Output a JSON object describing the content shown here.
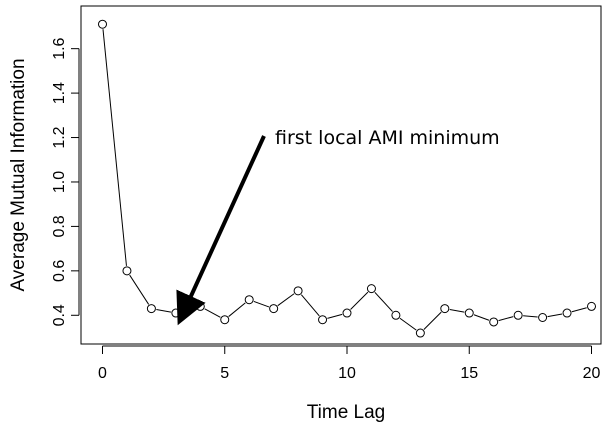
{
  "chart_data": {
    "type": "line",
    "xlabel": "Time Lag",
    "ylabel": "Average Mutual Information",
    "xlim": [
      0,
      20
    ],
    "ylim": [
      0.3,
      1.72
    ],
    "xticks": [
      "0",
      "5",
      "10",
      "15",
      "20"
    ],
    "yticks": [
      "0.4",
      "0.6",
      "0.8",
      "1.0",
      "1.2",
      "1.4",
      "1.6"
    ],
    "grid": false,
    "marker": "open-circle",
    "line_color": "#000000",
    "series": [
      {
        "x": [
          0,
          1,
          2,
          3,
          4,
          5,
          6,
          7,
          8,
          9,
          10,
          11,
          12,
          13,
          14,
          15,
          16,
          17,
          18,
          19,
          20
        ],
        "values": [
          1.71,
          0.6,
          0.43,
          0.41,
          0.44,
          0.38,
          0.47,
          0.43,
          0.51,
          0.38,
          0.41,
          0.52,
          0.4,
          0.32,
          0.43,
          0.41,
          0.37,
          0.4,
          0.39,
          0.41,
          0.44
        ]
      }
    ],
    "annotation": {
      "text": "first local AMI minimum",
      "points_to_x": 3,
      "points_to_y": 0.41
    }
  }
}
